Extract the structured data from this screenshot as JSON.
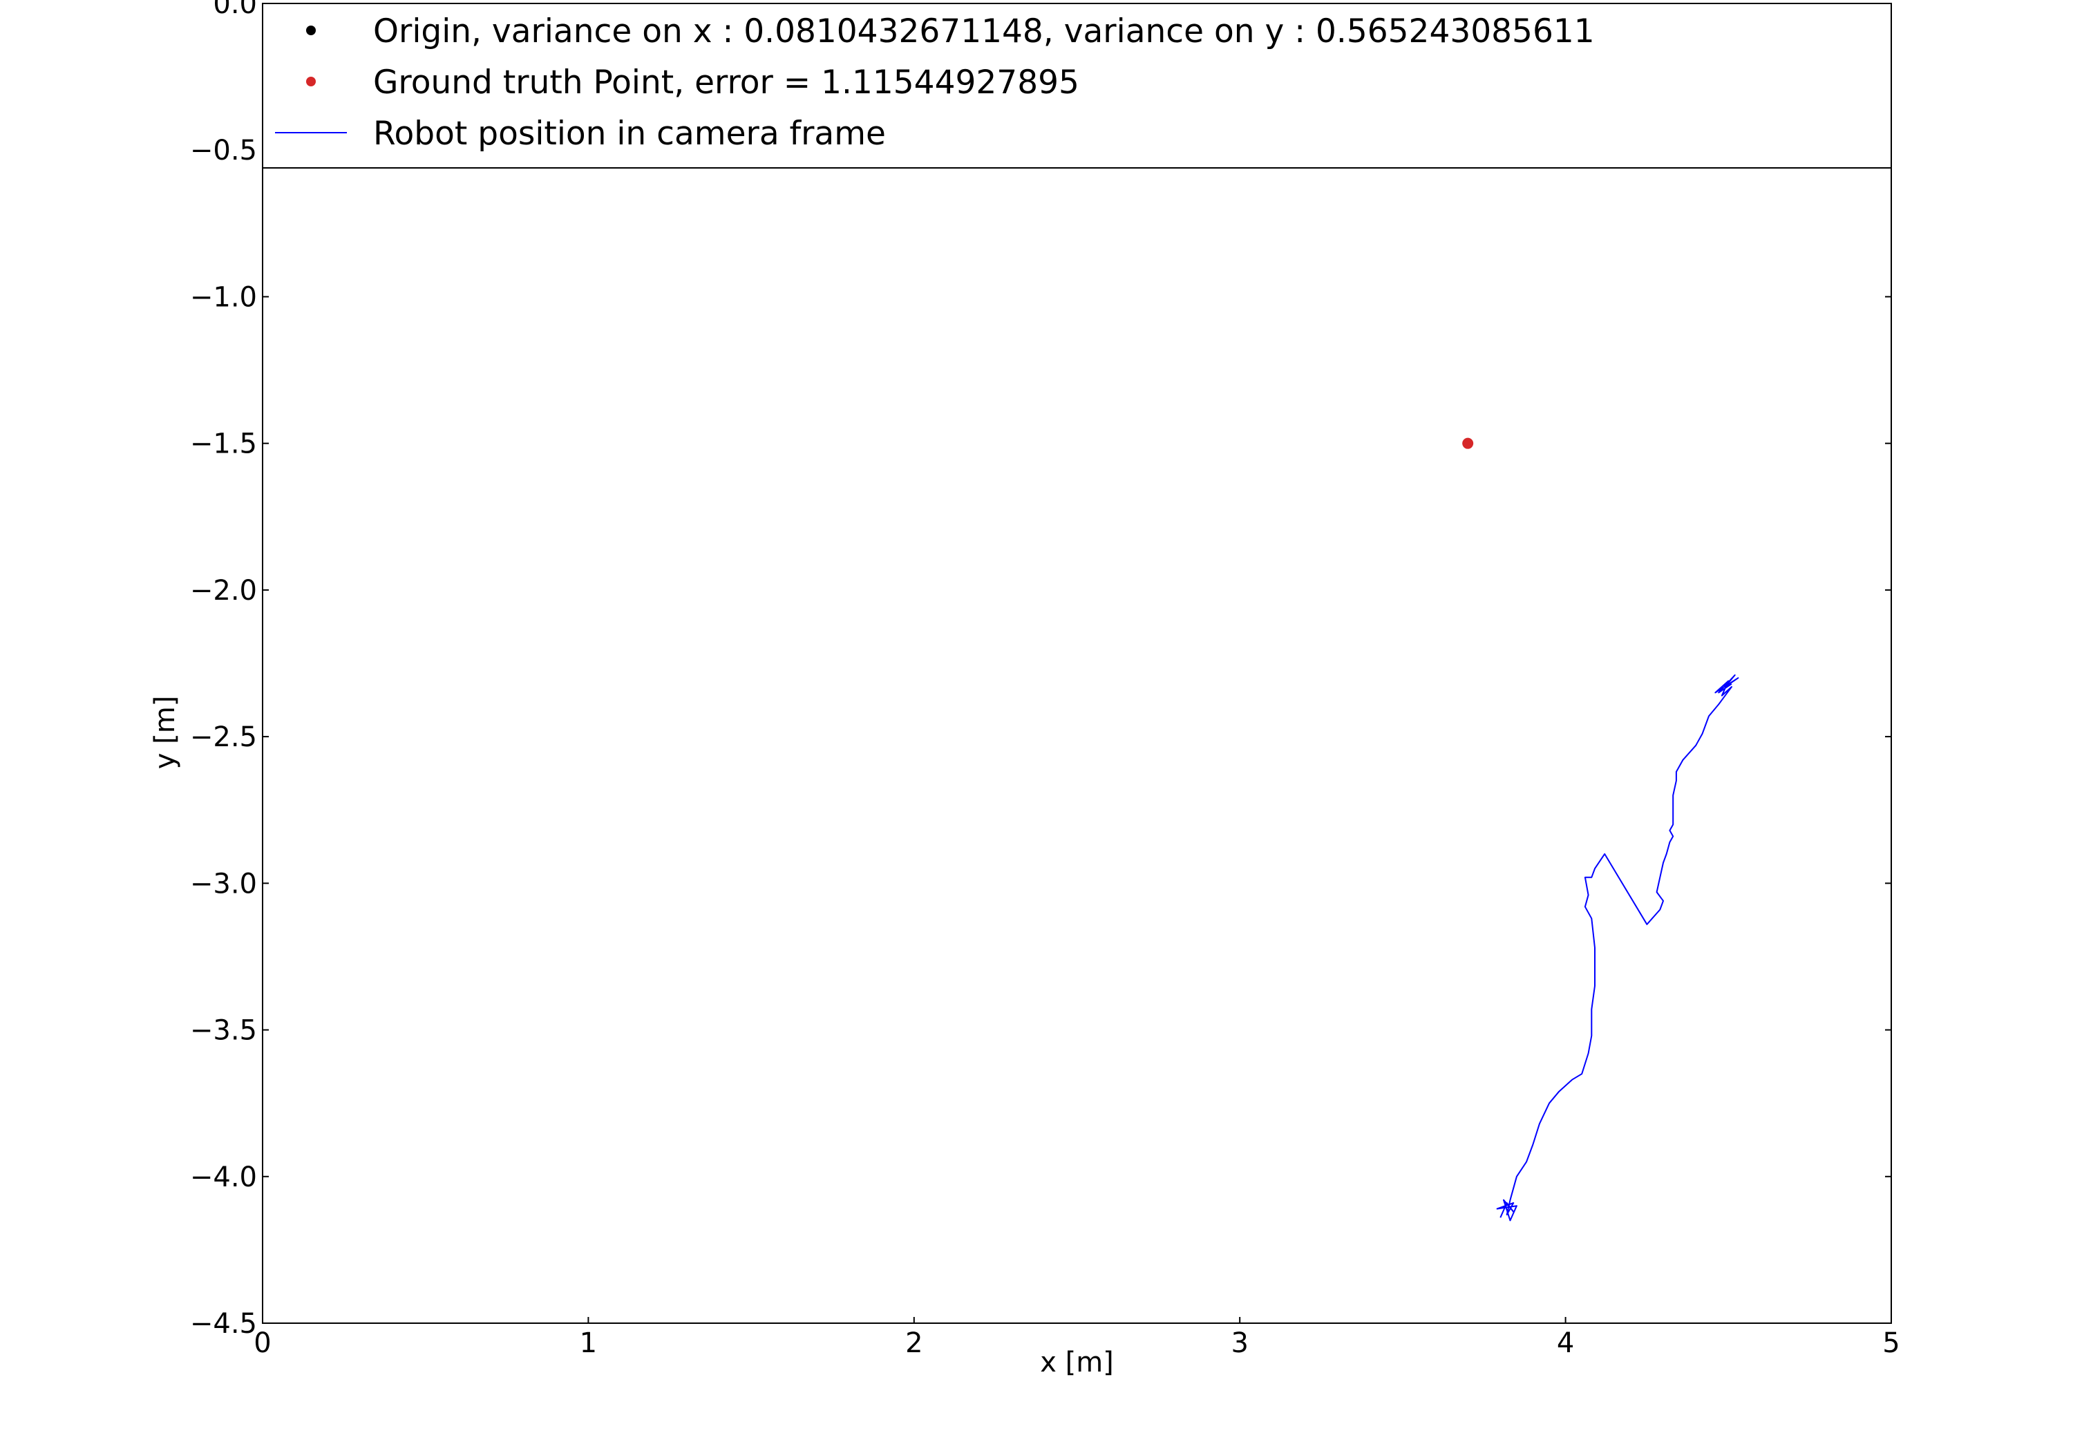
{
  "chart_data": {
    "type": "scatter",
    "xlabel": "x [m]",
    "ylabel": "y [m]",
    "xlim": [
      0,
      5
    ],
    "ylim": [
      -4.5,
      0.0
    ],
    "xticks": [
      0,
      1,
      2,
      3,
      4,
      5
    ],
    "xtick_labels": [
      "0",
      "1",
      "2",
      "3",
      "4",
      "5"
    ],
    "yticks": [
      0.0,
      -0.5,
      -1.0,
      -1.5,
      -2.0,
      -2.5,
      -3.0,
      -3.5,
      -4.0,
      -4.5
    ],
    "ytick_labels": [
      "0.0",
      "−0.5",
      "−1.0",
      "−1.5",
      "−2.0",
      "−2.5",
      "−3.0",
      "−3.5",
      "−4.0",
      "−4.5"
    ],
    "grid": false,
    "legend_position": "top",
    "series": [
      {
        "name": "Origin, variance on x : 0.0810432671148, variance on y : 0.565243085611",
        "kind": "point",
        "color": "#000000",
        "points": []
      },
      {
        "name": "Ground truth Point, error = 1.11544927895",
        "kind": "point",
        "color": "#d62728",
        "points": [
          [
            3.7,
            -1.5
          ]
        ]
      },
      {
        "name": "Robot position in camera frame",
        "kind": "line",
        "color": "#0000ff",
        "points": [
          [
            3.8,
            -4.14
          ],
          [
            3.82,
            -4.09
          ],
          [
            3.84,
            -4.12
          ],
          [
            3.81,
            -4.08
          ],
          [
            3.83,
            -4.15
          ],
          [
            3.85,
            -4.1
          ],
          [
            3.79,
            -4.11
          ],
          [
            3.84,
            -4.09
          ],
          [
            3.82,
            -4.13
          ],
          [
            3.83,
            -4.08
          ],
          [
            3.85,
            -4.0
          ],
          [
            3.88,
            -3.95
          ],
          [
            3.9,
            -3.89
          ],
          [
            3.92,
            -3.82
          ],
          [
            3.95,
            -3.75
          ],
          [
            3.98,
            -3.71
          ],
          [
            4.02,
            -3.67
          ],
          [
            4.05,
            -3.65
          ],
          [
            4.07,
            -3.58
          ],
          [
            4.08,
            -3.52
          ],
          [
            4.08,
            -3.43
          ],
          [
            4.09,
            -3.35
          ],
          [
            4.09,
            -3.22
          ],
          [
            4.08,
            -3.12
          ],
          [
            4.06,
            -3.08
          ],
          [
            4.07,
            -3.04
          ],
          [
            4.06,
            -2.98
          ],
          [
            4.08,
            -2.98
          ],
          [
            4.09,
            -2.95
          ],
          [
            4.12,
            -2.9
          ],
          [
            4.25,
            -3.14
          ],
          [
            4.29,
            -3.09
          ],
          [
            4.3,
            -3.06
          ],
          [
            4.28,
            -3.03
          ],
          [
            4.29,
            -2.98
          ],
          [
            4.3,
            -2.93
          ],
          [
            4.31,
            -2.9
          ],
          [
            4.32,
            -2.86
          ],
          [
            4.33,
            -2.84
          ],
          [
            4.32,
            -2.82
          ],
          [
            4.33,
            -2.8
          ],
          [
            4.33,
            -2.7
          ],
          [
            4.34,
            -2.65
          ],
          [
            4.34,
            -2.62
          ],
          [
            4.36,
            -2.58
          ],
          [
            4.4,
            -2.53
          ],
          [
            4.42,
            -2.49
          ],
          [
            4.44,
            -2.43
          ],
          [
            4.47,
            -2.39
          ],
          [
            4.49,
            -2.36
          ],
          [
            4.51,
            -2.33
          ],
          [
            4.48,
            -2.36
          ],
          [
            4.5,
            -2.31
          ],
          [
            4.46,
            -2.35
          ],
          [
            4.53,
            -2.3
          ],
          [
            4.49,
            -2.33
          ],
          [
            4.52,
            -2.29
          ],
          [
            4.47,
            -2.35
          ],
          [
            4.51,
            -2.32
          ]
        ]
      }
    ]
  }
}
